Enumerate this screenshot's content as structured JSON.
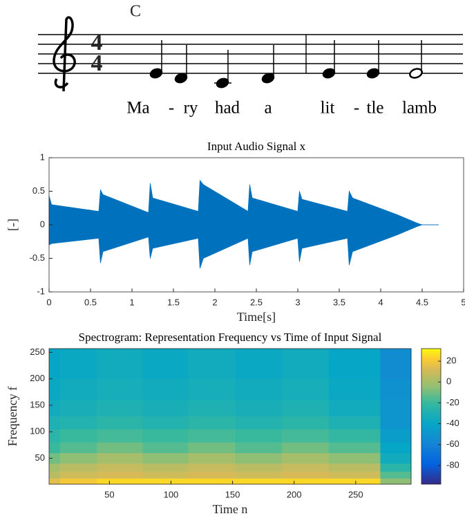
{
  "score": {
    "chord": "C",
    "time_signature": {
      "top": "4",
      "bottom": "4"
    },
    "lyrics": [
      "Ma",
      "-",
      "ry",
      "had",
      "a",
      "lit",
      "-",
      "tle",
      "lamb"
    ]
  },
  "chart_data": [
    {
      "type": "envelope",
      "title": "Input Audio Signal x",
      "xlabel": "Time[s]",
      "ylabel": "[-]",
      "color": "#0072bd",
      "x": [
        0,
        0.03,
        0.6,
        0.62,
        0.65,
        1.2,
        1.22,
        1.25,
        1.8,
        1.82,
        1.86,
        2.4,
        2.42,
        2.45,
        3.0,
        3.02,
        3.05,
        3.6,
        3.62,
        3.66,
        4.2,
        4.45,
        4.5,
        4.7
      ],
      "upper": [
        0.43,
        0.3,
        0.2,
        0.52,
        0.45,
        0.18,
        0.62,
        0.4,
        0.2,
        0.66,
        0.6,
        0.2,
        0.6,
        0.4,
        0.2,
        0.5,
        0.38,
        0.2,
        0.5,
        0.4,
        0.15,
        0.02,
        0,
        0
      ],
      "lower": [
        -0.3,
        -0.28,
        -0.2,
        -0.57,
        -0.4,
        -0.18,
        -0.5,
        -0.35,
        -0.2,
        -0.65,
        -0.5,
        -0.2,
        -0.6,
        -0.4,
        -0.2,
        -0.55,
        -0.35,
        -0.2,
        -0.6,
        -0.4,
        -0.15,
        -0.02,
        0,
        0
      ],
      "xlim": [
        0,
        5
      ],
      "xticks": [
        0,
        0.5,
        1,
        1.5,
        2,
        2.5,
        3,
        3.5,
        4,
        4.5,
        5
      ],
      "ylim": [
        -1,
        1
      ],
      "yticks": [
        -1,
        -0.5,
        0,
        0.5,
        1
      ]
    },
    {
      "type": "heatmap",
      "title": "Spectrogram: Representation Frequency vs Time of Input Signal",
      "xlabel": "Time n",
      "ylabel": "Frequency f",
      "x_edges": [
        1,
        10,
        40,
        77,
        114,
        152,
        190,
        228,
        270,
        295
      ],
      "y_edges": [
        1,
        12,
        25,
        40,
        60,
        80,
        105,
        130,
        160,
        200,
        257
      ],
      "z": [
        [
          15,
          20,
          25,
          25,
          25,
          25,
          25,
          25,
          -5
        ],
        [
          5,
          10,
          12,
          10,
          12,
          10,
          12,
          10,
          -15
        ],
        [
          0,
          5,
          8,
          5,
          8,
          5,
          8,
          5,
          -25
        ],
        [
          -10,
          -5,
          0,
          -5,
          0,
          -5,
          0,
          -5,
          -35
        ],
        [
          -20,
          -15,
          -10,
          -15,
          -10,
          -15,
          -10,
          -15,
          -40
        ],
        [
          -25,
          -20,
          -18,
          -20,
          -18,
          -20,
          -18,
          -22,
          -45
        ],
        [
          -30,
          -28,
          -25,
          -28,
          -25,
          -28,
          -25,
          -30,
          -50
        ],
        [
          -35,
          -32,
          -30,
          -32,
          -30,
          -32,
          -30,
          -35,
          -50
        ],
        [
          -38,
          -35,
          -33,
          -35,
          -33,
          -35,
          -33,
          -38,
          -52
        ],
        [
          -40,
          -38,
          -35,
          -38,
          -35,
          -38,
          -35,
          -40,
          -55
        ]
      ],
      "xlim": [
        1,
        295
      ],
      "xticks": [
        50,
        100,
        150,
        200,
        250
      ],
      "ylim": [
        1,
        257
      ],
      "yticks": [
        50,
        100,
        150,
        200,
        250
      ],
      "clim": [
        -98,
        32
      ],
      "cticks": [
        -80,
        -60,
        -40,
        -20,
        0,
        20
      ]
    }
  ]
}
